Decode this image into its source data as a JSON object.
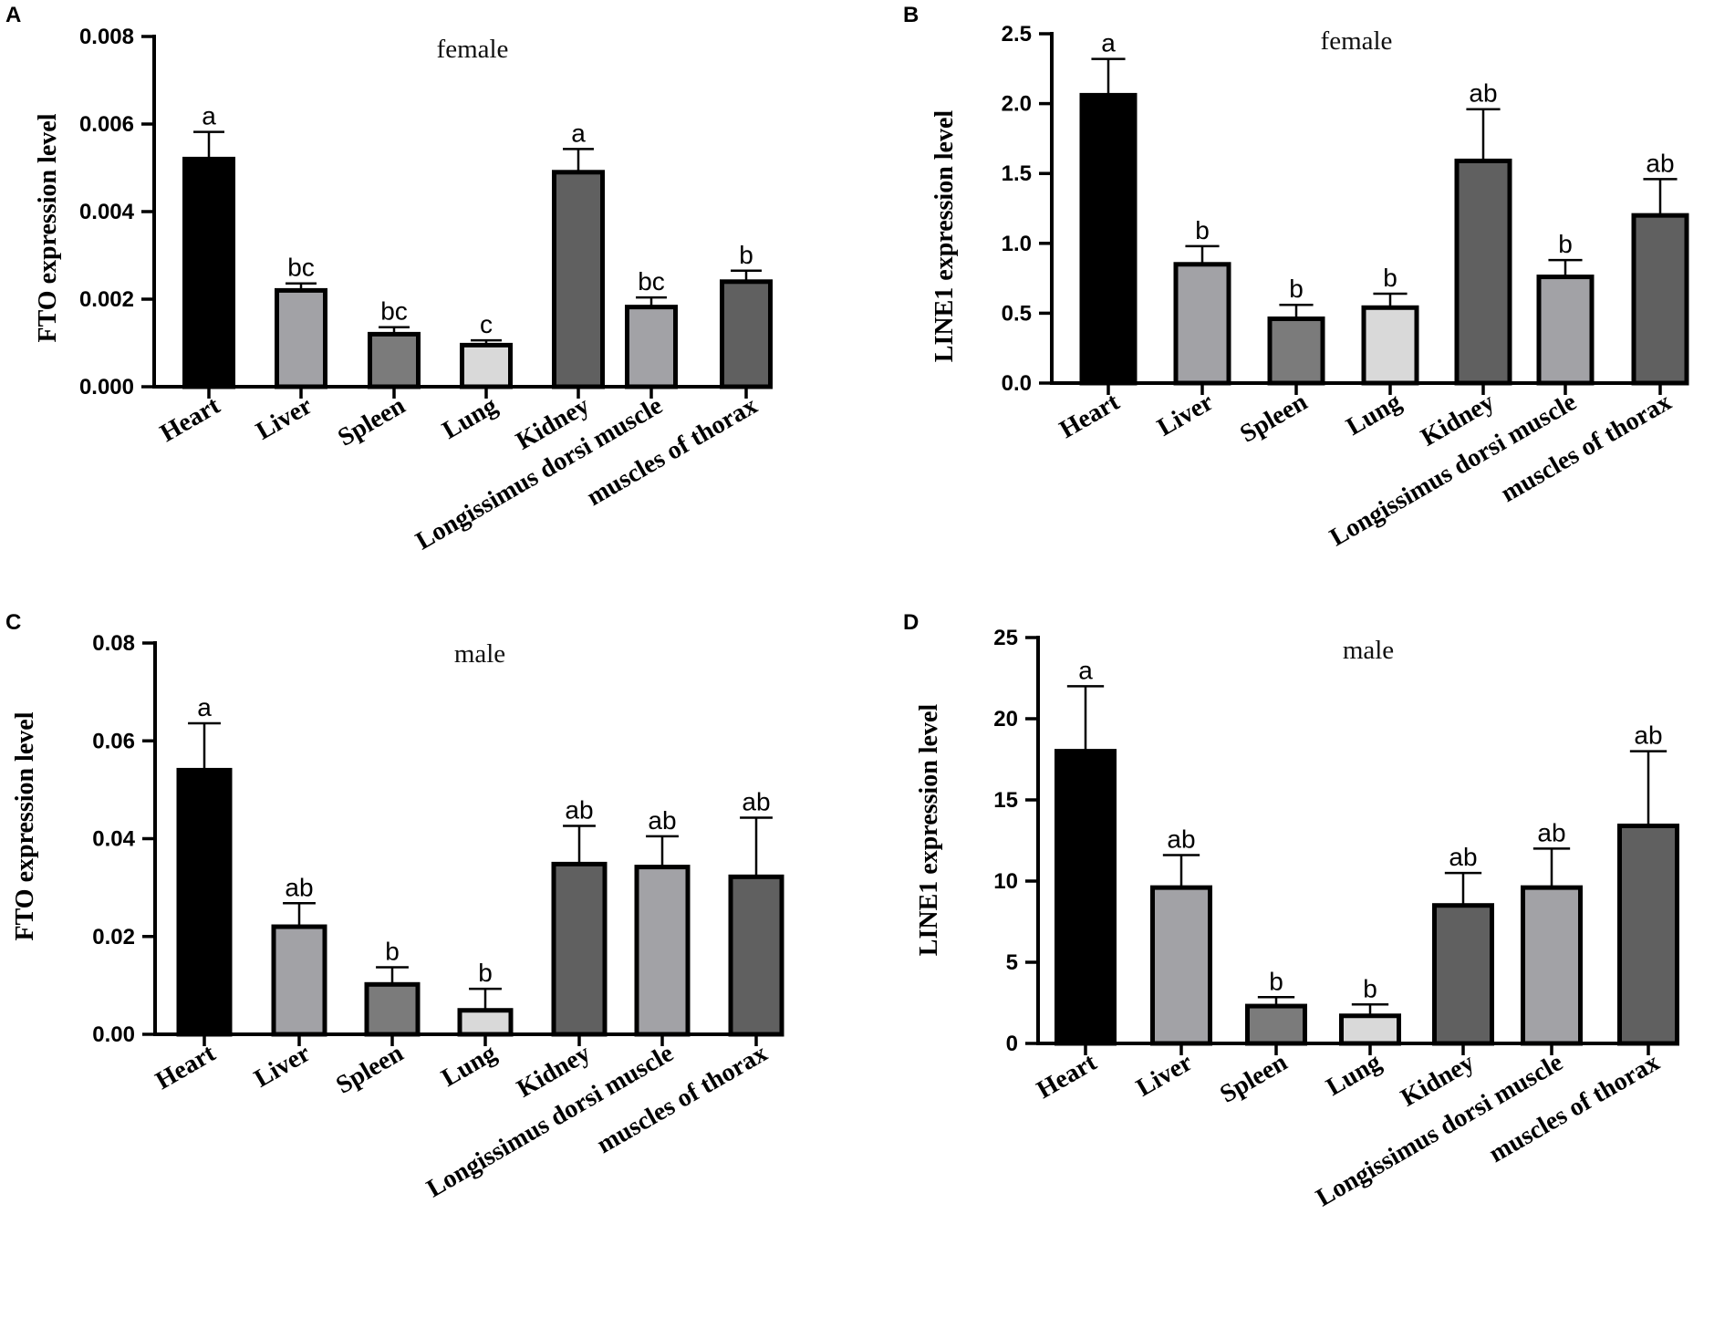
{
  "panels": [
    {
      "letter": "A",
      "chart_data": {
        "type": "bar",
        "title": "female",
        "ylabel": "FTO expression level",
        "xlabel": "",
        "ylim": [
          0,
          0.008
        ],
        "yticks": [
          0,
          0.002,
          0.004,
          0.006,
          0.008
        ],
        "ytick_labels": [
          "0.000",
          "0.002",
          "0.004",
          "0.006",
          "0.008"
        ],
        "categories": [
          "Heart",
          "Liver",
          "Spleen",
          "Lung",
          "Kidney",
          "Longissimus dorsi muscle",
          "muscles of thorax"
        ],
        "values": [
          0.0052,
          0.0022,
          0.0012,
          0.00095,
          0.0049,
          0.00182,
          0.0024
        ],
        "errors": [
          0.00062,
          0.00016,
          0.00016,
          0.00011,
          0.00053,
          0.00022,
          0.00025
        ],
        "significance": [
          "a",
          "bc",
          "bc",
          "c",
          "a",
          "bc",
          "b"
        ],
        "colors": [
          "#000000",
          "#a2a2a6",
          "#7b7b7b",
          "#d9d9d9",
          "#606060",
          "#a2a2a6",
          "#606060"
        ]
      }
    },
    {
      "letter": "B",
      "chart_data": {
        "type": "bar",
        "title": "female",
        "ylabel": "LINE1 expression level",
        "xlabel": "",
        "ylim": [
          0,
          2.5
        ],
        "yticks": [
          0,
          0.5,
          1.0,
          1.5,
          2.0,
          2.5
        ],
        "ytick_labels": [
          "0.0",
          "0.5",
          "1.0",
          "1.5",
          "2.0",
          "2.5"
        ],
        "categories": [
          "Heart",
          "Liver",
          "Spleen",
          "Lung",
          "Kidney",
          "Longissimus dorsi muscle",
          "muscles of thorax"
        ],
        "values": [
          2.06,
          0.85,
          0.46,
          0.54,
          1.59,
          0.76,
          1.2
        ],
        "errors": [
          0.26,
          0.13,
          0.1,
          0.1,
          0.37,
          0.12,
          0.26
        ],
        "significance": [
          "a",
          "b",
          "b",
          "b",
          "ab",
          "b",
          "ab"
        ],
        "colors": [
          "#000000",
          "#a2a2a6",
          "#7b7b7b",
          "#d9d9d9",
          "#606060",
          "#a2a2a6",
          "#606060"
        ]
      }
    },
    {
      "letter": "C",
      "chart_data": {
        "type": "bar",
        "title": "male",
        "ylabel": "FTO expression level",
        "xlabel": "",
        "ylim": [
          0,
          0.08
        ],
        "yticks": [
          0,
          0.02,
          0.04,
          0.06,
          0.08
        ],
        "ytick_labels": [
          "0.00",
          "0.02",
          "0.04",
          "0.06",
          "0.08"
        ],
        "categories": [
          "Heart",
          "Liver",
          "Spleen",
          "Lung",
          "Kidney",
          "Longissimus dorsi muscle",
          "muscles of thorax"
        ],
        "values": [
          0.054,
          0.022,
          0.0102,
          0.0049,
          0.0348,
          0.0342,
          0.0322
        ],
        "errors": [
          0.0096,
          0.0048,
          0.0035,
          0.0044,
          0.0078,
          0.0063,
          0.0121
        ],
        "significance": [
          "a",
          "ab",
          "b",
          "b",
          "ab",
          "ab",
          "ab"
        ],
        "colors": [
          "#000000",
          "#a2a2a6",
          "#7b7b7b",
          "#d9d9d9",
          "#606060",
          "#a2a2a6",
          "#606060"
        ]
      }
    },
    {
      "letter": "D",
      "chart_data": {
        "type": "bar",
        "title": "male",
        "ylabel": "LINE1 expression level",
        "xlabel": "",
        "ylim": [
          0,
          25
        ],
        "yticks": [
          0,
          5,
          10,
          15,
          20,
          25
        ],
        "ytick_labels": [
          "0",
          "5",
          "10",
          "15",
          "20",
          "25"
        ],
        "categories": [
          "Heart",
          "Liver",
          "Spleen",
          "Lung",
          "Kidney",
          "Longissimus dorsi muscle",
          "muscles of thorax"
        ],
        "values": [
          18.0,
          9.6,
          2.3,
          1.7,
          8.5,
          9.6,
          13.4
        ],
        "errors": [
          4.0,
          2.0,
          0.55,
          0.7,
          2.0,
          2.4,
          4.6
        ],
        "significance": [
          "a",
          "ab",
          "b",
          "b",
          "ab",
          "ab",
          "ab"
        ],
        "colors": [
          "#000000",
          "#a2a2a6",
          "#7b7b7b",
          "#d9d9d9",
          "#606060",
          "#a2a2a6",
          "#606060"
        ]
      }
    }
  ]
}
